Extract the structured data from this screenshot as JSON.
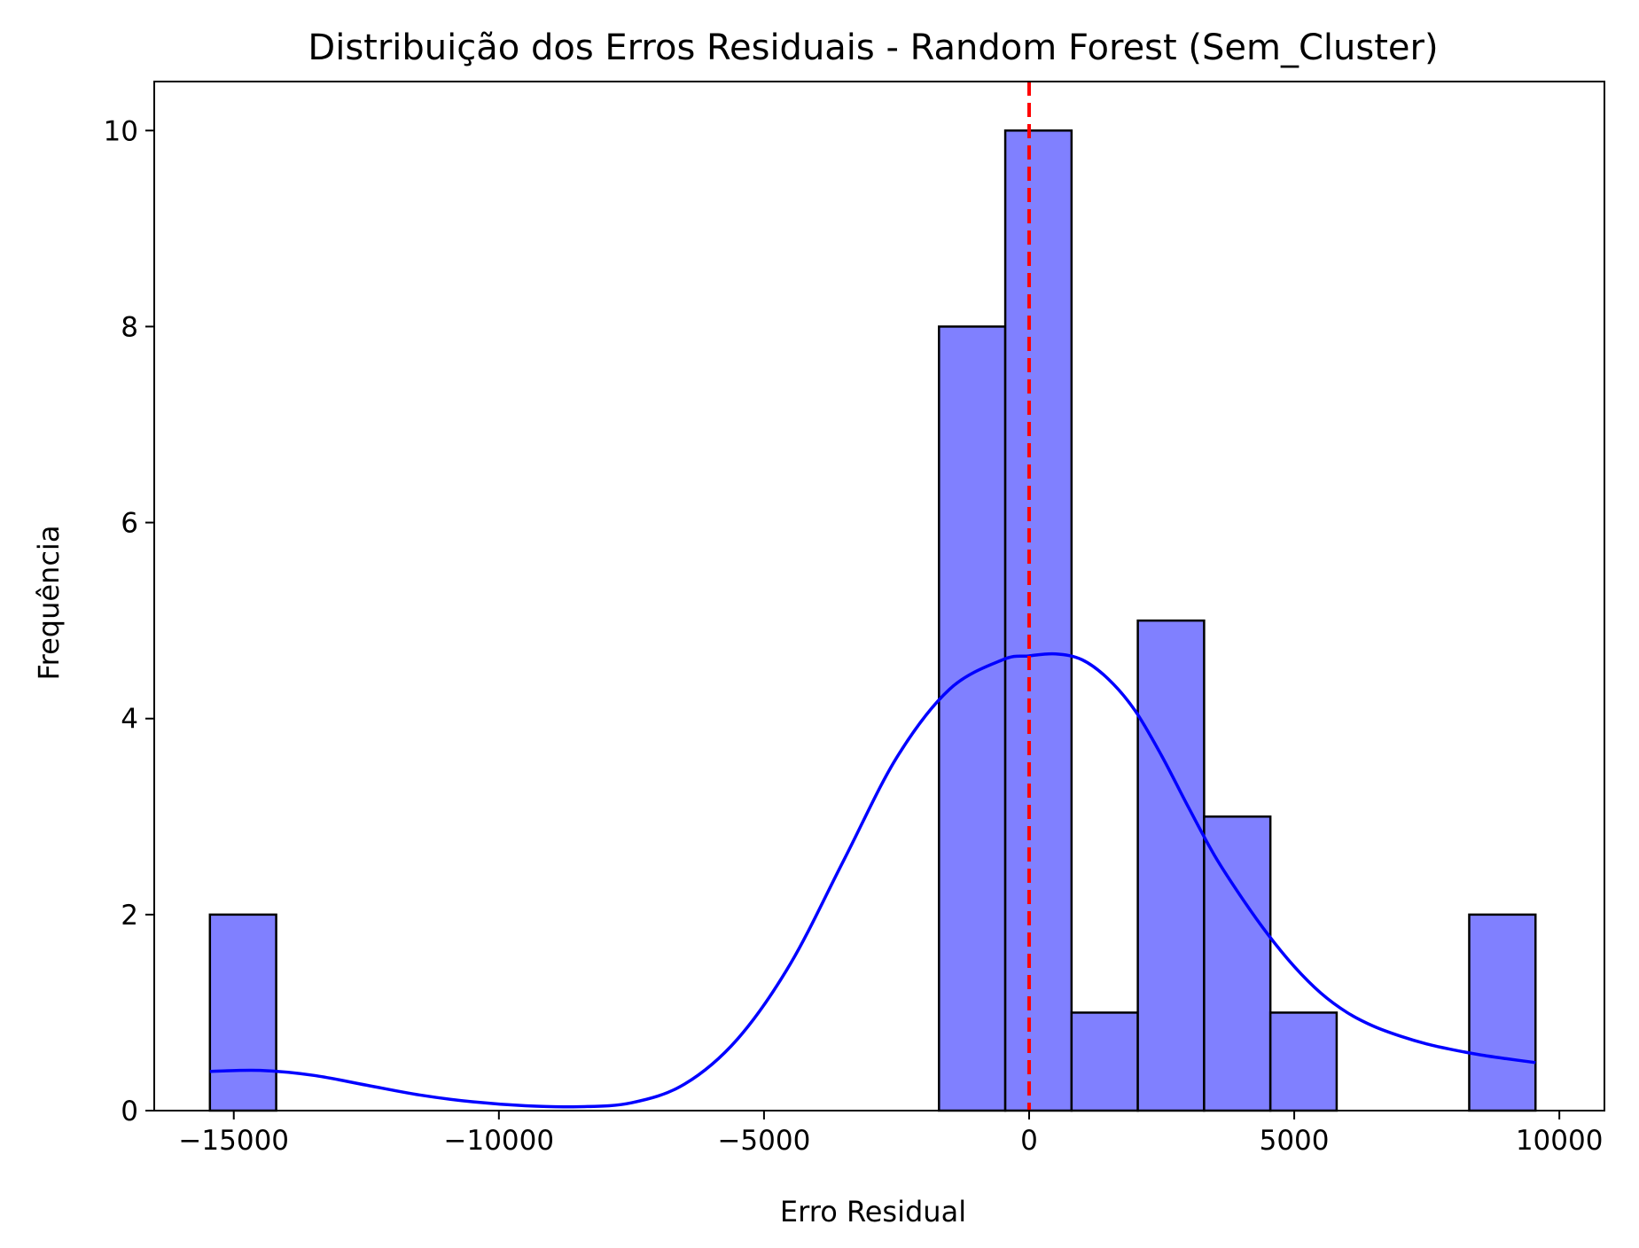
{
  "chart_data": {
    "type": "bar",
    "title": "Distribuição dos Erros Residuais - Random Forest (Sem_Cluster)",
    "xlabel": "Erro Residual",
    "ylabel": "Frequência",
    "xlim": [
      -16500,
      10850
    ],
    "ylim": [
      0,
      10.5
    ],
    "x_ticks": [
      -15000,
      -10000,
      -5000,
      0,
      5000,
      10000
    ],
    "x_tick_labels": [
      "−15000",
      "−10000",
      "−5000",
      "0",
      "5000",
      "10000"
    ],
    "y_ticks": [
      0,
      2,
      4,
      6,
      8,
      10
    ],
    "y_tick_labels": [
      "0",
      "2",
      "4",
      "6",
      "8",
      "10"
    ],
    "bins": [
      {
        "x0": -15450,
        "x1": -14200,
        "count": 2
      },
      {
        "x0": -14200,
        "x1": -12950,
        "count": 0
      },
      {
        "x0": -12950,
        "x1": -11700,
        "count": 0
      },
      {
        "x0": -11700,
        "x1": -10450,
        "count": 0
      },
      {
        "x0": -10450,
        "x1": -9200,
        "count": 0
      },
      {
        "x0": -9200,
        "x1": -7950,
        "count": 0
      },
      {
        "x0": -7950,
        "x1": -6700,
        "count": 0
      },
      {
        "x0": -6700,
        "x1": -5450,
        "count": 0
      },
      {
        "x0": -5450,
        "x1": -4200,
        "count": 0
      },
      {
        "x0": -4200,
        "x1": -2950,
        "count": 0
      },
      {
        "x0": -2950,
        "x1": -1700,
        "count": 0
      },
      {
        "x0": -1700,
        "x1": -450,
        "count": 8
      },
      {
        "x0": -450,
        "x1": 800,
        "count": 10
      },
      {
        "x0": 800,
        "x1": 2050,
        "count": 1
      },
      {
        "x0": 2050,
        "x1": 3300,
        "count": 5
      },
      {
        "x0": 3300,
        "x1": 4550,
        "count": 3
      },
      {
        "x0": 4550,
        "x1": 5800,
        "count": 1
      },
      {
        "x0": 5800,
        "x1": 7050,
        "count": 0
      },
      {
        "x0": 7050,
        "x1": 8300,
        "count": 0
      },
      {
        "x0": 8300,
        "x1": 9550,
        "count": 2
      }
    ],
    "kde": {
      "name": "kde",
      "x": [
        -15450,
        -14500,
        -13500,
        -12500,
        -11500,
        -10500,
        -9500,
        -8500,
        -7500,
        -6500,
        -5500,
        -4500,
        -3500,
        -2500,
        -1500,
        -500,
        0,
        500,
        1000,
        1500,
        2000,
        2500,
        3000,
        3500,
        4000,
        4500,
        5000,
        5500,
        6000,
        6500,
        7000,
        7500,
        8000,
        8500,
        9000,
        9550
      ],
      "y": [
        0.4,
        0.41,
        0.36,
        0.26,
        0.16,
        0.09,
        0.05,
        0.04,
        0.08,
        0.27,
        0.73,
        1.5,
        2.55,
        3.6,
        4.3,
        4.6,
        4.64,
        4.66,
        4.6,
        4.4,
        4.08,
        3.62,
        3.1,
        2.6,
        2.18,
        1.8,
        1.47,
        1.2,
        1.0,
        0.86,
        0.76,
        0.68,
        0.62,
        0.57,
        0.53,
        0.49
      ]
    },
    "reference_line": {
      "x": 0,
      "style": "dashed"
    },
    "colors": {
      "bar_fill": "#8080ff",
      "bar_edge": "#000000",
      "kde_line": "#0000ff",
      "reference_line": "#ff0000"
    },
    "grid": false,
    "legend": "none"
  }
}
